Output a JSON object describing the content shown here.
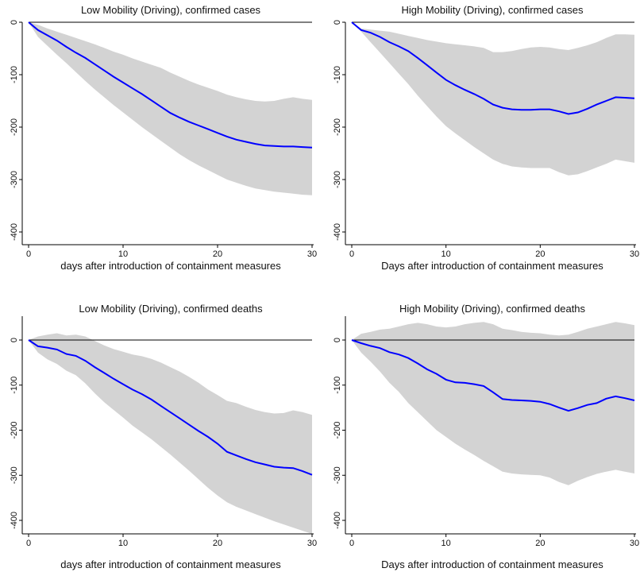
{
  "chart_data": [
    {
      "type": "line",
      "title": "Low Mobility (Driving), confirmed cases",
      "xlabel": "days after introduction of containment measures",
      "ylabel": "",
      "xlim": [
        0,
        30
      ],
      "ylim": [
        -400,
        0
      ],
      "xticks": [
        0,
        10,
        20,
        30
      ],
      "yticks": [
        0,
        -100,
        -200,
        -300,
        -400
      ],
      "zero_line": true,
      "band_color": "#d3d3d3",
      "line_color": "#0000ff",
      "series": [
        {
          "x": [
            0,
            1,
            2,
            3,
            4,
            5,
            6,
            7,
            8,
            9,
            10,
            11,
            12,
            13,
            14,
            15,
            16,
            17,
            18,
            19,
            20,
            21,
            22,
            23,
            24,
            25,
            26,
            27,
            28,
            29,
            30
          ],
          "y": [
            0,
            -15,
            -25,
            -35,
            -47,
            -58,
            -68,
            -80,
            -92,
            -104,
            -115,
            -126,
            -137,
            -149,
            -161,
            -173,
            -182,
            -190,
            -197,
            -204,
            -211,
            -218,
            -224,
            -228,
            -232,
            -235,
            -236,
            -237,
            -237,
            -238,
            -239
          ],
          "lower": [
            0,
            -28,
            -45,
            -62,
            -78,
            -95,
            -112,
            -128,
            -143,
            -158,
            -172,
            -186,
            -200,
            -213,
            -226,
            -239,
            -252,
            -263,
            -273,
            -282,
            -291,
            -300,
            -306,
            -312,
            -317,
            -320,
            -323,
            -325,
            -327,
            -329,
            -330
          ],
          "upper": [
            0,
            -5,
            -12,
            -18,
            -24,
            -30,
            -36,
            -42,
            -49,
            -56,
            -62,
            -69,
            -75,
            -81,
            -87,
            -96,
            -104,
            -112,
            -119,
            -125,
            -131,
            -138,
            -143,
            -147,
            -150,
            -151,
            -150,
            -146,
            -143,
            -146,
            -148
          ]
        }
      ]
    },
    {
      "type": "line",
      "title": "High Mobility (Driving), confirmed cases",
      "xlabel": "Days after introduction of containment measures",
      "ylabel": "",
      "xlim": [
        0,
        30
      ],
      "ylim": [
        -400,
        0
      ],
      "xticks": [
        0,
        10,
        20,
        30
      ],
      "yticks": [
        0,
        -100,
        -200,
        -300,
        -400
      ],
      "zero_line": true,
      "band_color": "#d3d3d3",
      "line_color": "#0000ff",
      "series": [
        {
          "x": [
            0,
            1,
            2,
            3,
            4,
            5,
            6,
            7,
            8,
            9,
            10,
            11,
            12,
            13,
            14,
            15,
            16,
            17,
            18,
            19,
            20,
            21,
            22,
            23,
            24,
            25,
            26,
            27,
            28,
            29,
            30
          ],
          "y": [
            0,
            -15,
            -20,
            -28,
            -38,
            -46,
            -55,
            -68,
            -82,
            -96,
            -110,
            -120,
            -129,
            -137,
            -146,
            -157,
            -163,
            -166,
            -167,
            -167,
            -166,
            -166,
            -170,
            -175,
            -172,
            -165,
            -157,
            -150,
            -143,
            -144,
            -145
          ],
          "lower": [
            0,
            -18,
            -38,
            -58,
            -78,
            -98,
            -118,
            -140,
            -160,
            -180,
            -198,
            -212,
            -225,
            -238,
            -250,
            -262,
            -270,
            -275,
            -277,
            -278,
            -278,
            -278,
            -286,
            -292,
            -290,
            -284,
            -277,
            -270,
            -262,
            -265,
            -268
          ],
          "upper": [
            0,
            -12,
            -14,
            -16,
            -18,
            -22,
            -26,
            -30,
            -34,
            -37,
            -40,
            -42,
            -44,
            -46,
            -49,
            -57,
            -57,
            -55,
            -51,
            -48,
            -47,
            -48,
            -51,
            -53,
            -49,
            -44,
            -38,
            -30,
            -23,
            -23,
            -24
          ]
        }
      ]
    },
    {
      "type": "line",
      "title": "Low Mobility (Driving), confirmed deaths",
      "xlabel": "days after introduction of containment measures",
      "ylabel": "",
      "xlim": [
        0,
        30
      ],
      "ylim": [
        -400,
        0
      ],
      "xticks": [
        0,
        10,
        20,
        30
      ],
      "yticks": [
        0,
        -100,
        -200,
        -300,
        -400
      ],
      "zero_line": true,
      "band_color": "#d3d3d3",
      "line_color": "#0000ff",
      "series": [
        {
          "x": [
            0,
            1,
            2,
            3,
            4,
            5,
            6,
            7,
            8,
            9,
            10,
            11,
            12,
            13,
            14,
            15,
            16,
            17,
            18,
            19,
            20,
            21,
            22,
            23,
            24,
            25,
            26,
            27,
            28,
            29,
            30
          ],
          "y": [
            0,
            -14,
            -17,
            -21,
            -31,
            -35,
            -46,
            -60,
            -73,
            -86,
            -98,
            -110,
            -120,
            -132,
            -146,
            -160,
            -174,
            -188,
            -202,
            -215,
            -230,
            -248,
            -256,
            -264,
            -271,
            -276,
            -281,
            -283,
            -284,
            -291,
            -299
          ],
          "lower": [
            0,
            -28,
            -43,
            -53,
            -68,
            -78,
            -96,
            -118,
            -138,
            -155,
            -172,
            -190,
            -205,
            -220,
            -237,
            -254,
            -272,
            -290,
            -309,
            -328,
            -345,
            -360,
            -370,
            -378,
            -386,
            -394,
            -402,
            -409,
            -416,
            -423,
            -430
          ],
          "upper": [
            0,
            8,
            12,
            15,
            10,
            12,
            8,
            -2,
            -12,
            -20,
            -26,
            -32,
            -36,
            -42,
            -50,
            -60,
            -70,
            -82,
            -95,
            -110,
            -122,
            -135,
            -140,
            -148,
            -155,
            -160,
            -163,
            -162,
            -156,
            -160,
            -166
          ]
        }
      ]
    },
    {
      "type": "line",
      "title": "High Mobility (Driving), confirmed deaths",
      "xlabel": "Days after introduction of containment measures",
      "ylabel": "",
      "xlim": [
        0,
        30
      ],
      "ylim": [
        -400,
        0
      ],
      "xticks": [
        0,
        10,
        20,
        30
      ],
      "yticks": [
        0,
        -100,
        -200,
        -300,
        -400
      ],
      "zero_line": true,
      "band_color": "#d3d3d3",
      "line_color": "#0000ff",
      "series": [
        {
          "x": [
            0,
            1,
            2,
            3,
            4,
            5,
            6,
            7,
            8,
            9,
            10,
            11,
            12,
            13,
            14,
            15,
            16,
            17,
            18,
            19,
            20,
            21,
            22,
            23,
            24,
            25,
            26,
            27,
            28,
            29,
            30
          ],
          "y": [
            0,
            -7,
            -13,
            -18,
            -27,
            -32,
            -40,
            -52,
            -65,
            -75,
            -88,
            -94,
            -95,
            -98,
            -102,
            -116,
            -131,
            -133,
            -134,
            -135,
            -137,
            -142,
            -150,
            -157,
            -151,
            -144,
            -140,
            -130,
            -125,
            -129,
            -134
          ],
          "lower": [
            0,
            -28,
            -48,
            -70,
            -95,
            -115,
            -140,
            -160,
            -180,
            -200,
            -215,
            -230,
            -243,
            -255,
            -268,
            -280,
            -292,
            -296,
            -298,
            -299,
            -300,
            -305,
            -315,
            -322,
            -312,
            -304,
            -297,
            -292,
            -288,
            -292,
            -296
          ],
          "upper": [
            0,
            14,
            18,
            23,
            25,
            30,
            35,
            38,
            35,
            30,
            28,
            30,
            35,
            38,
            40,
            35,
            25,
            22,
            18,
            16,
            15,
            12,
            10,
            12,
            18,
            25,
            30,
            35,
            40,
            37,
            33
          ]
        }
      ]
    }
  ]
}
